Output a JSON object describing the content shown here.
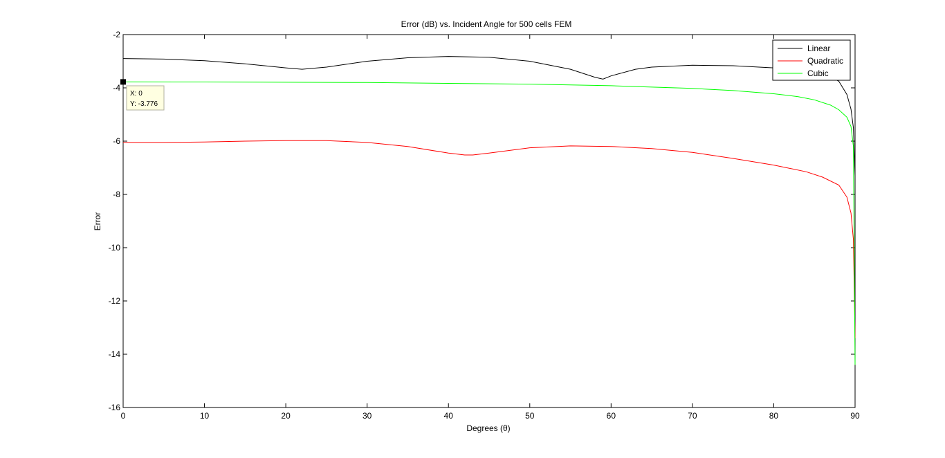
{
  "chart_data": {
    "type": "line",
    "title": "Error (dB) vs. Incident Angle for 500 cells FEM",
    "xlabel": "Degrees (θ)",
    "ylabel": "Error",
    "xlim": [
      0,
      90
    ],
    "ylim": [
      -16,
      -2
    ],
    "xticks": [
      "0",
      "10",
      "20",
      "30",
      "40",
      "50",
      "60",
      "70",
      "80",
      "90"
    ],
    "yticks": [
      "-2",
      "-4",
      "-6",
      "-8",
      "-10",
      "-12",
      "-14",
      "-16"
    ],
    "grid": false,
    "legend_position": "top-right",
    "series": [
      {
        "name": "Linear",
        "color": "#000000",
        "x": [
          0,
          5,
          10,
          15,
          20,
          22,
          25,
          30,
          35,
          40,
          45,
          50,
          55,
          58,
          59,
          60,
          63,
          65,
          70,
          75,
          80,
          84,
          86,
          88,
          89,
          89.5,
          89.8,
          90
        ],
        "y": [
          -2.9,
          -2.92,
          -2.98,
          -3.1,
          -3.25,
          -3.3,
          -3.22,
          -3.0,
          -2.87,
          -2.82,
          -2.85,
          -3.0,
          -3.3,
          -3.6,
          -3.67,
          -3.55,
          -3.3,
          -3.22,
          -3.15,
          -3.17,
          -3.25,
          -3.33,
          -3.42,
          -3.75,
          -4.25,
          -4.8,
          -5.5,
          -7.3
        ]
      },
      {
        "name": "Quadratic",
        "color": "#ff0000",
        "x": [
          0,
          5,
          10,
          15,
          20,
          25,
          30,
          35,
          40,
          42,
          43,
          45,
          50,
          55,
          60,
          65,
          70,
          75,
          80,
          84,
          86,
          88,
          89,
          89.5,
          89.8,
          90
        ],
        "y": [
          -6.05,
          -6.05,
          -6.03,
          -6.0,
          -5.98,
          -5.98,
          -6.05,
          -6.2,
          -6.45,
          -6.52,
          -6.52,
          -6.45,
          -6.25,
          -6.18,
          -6.2,
          -6.28,
          -6.42,
          -6.65,
          -6.9,
          -7.15,
          -7.35,
          -7.65,
          -8.1,
          -8.7,
          -9.7,
          -13.4
        ]
      },
      {
        "name": "Cubic",
        "color": "#00ff00",
        "x": [
          0,
          10,
          20,
          30,
          40,
          50,
          60,
          70,
          75,
          80,
          83,
          85,
          87,
          88,
          89,
          89.5,
          89.8,
          90
        ],
        "y": [
          -3.776,
          -3.78,
          -3.79,
          -3.8,
          -3.83,
          -3.86,
          -3.92,
          -4.02,
          -4.1,
          -4.22,
          -4.33,
          -4.45,
          -4.65,
          -4.82,
          -5.1,
          -5.45,
          -6.2,
          -14.4
        ]
      }
    ],
    "annotations": [
      {
        "type": "datatip",
        "x": 0,
        "y": -3.776,
        "text_x": "X: 0",
        "text_y": "Y: -3.776"
      }
    ]
  }
}
